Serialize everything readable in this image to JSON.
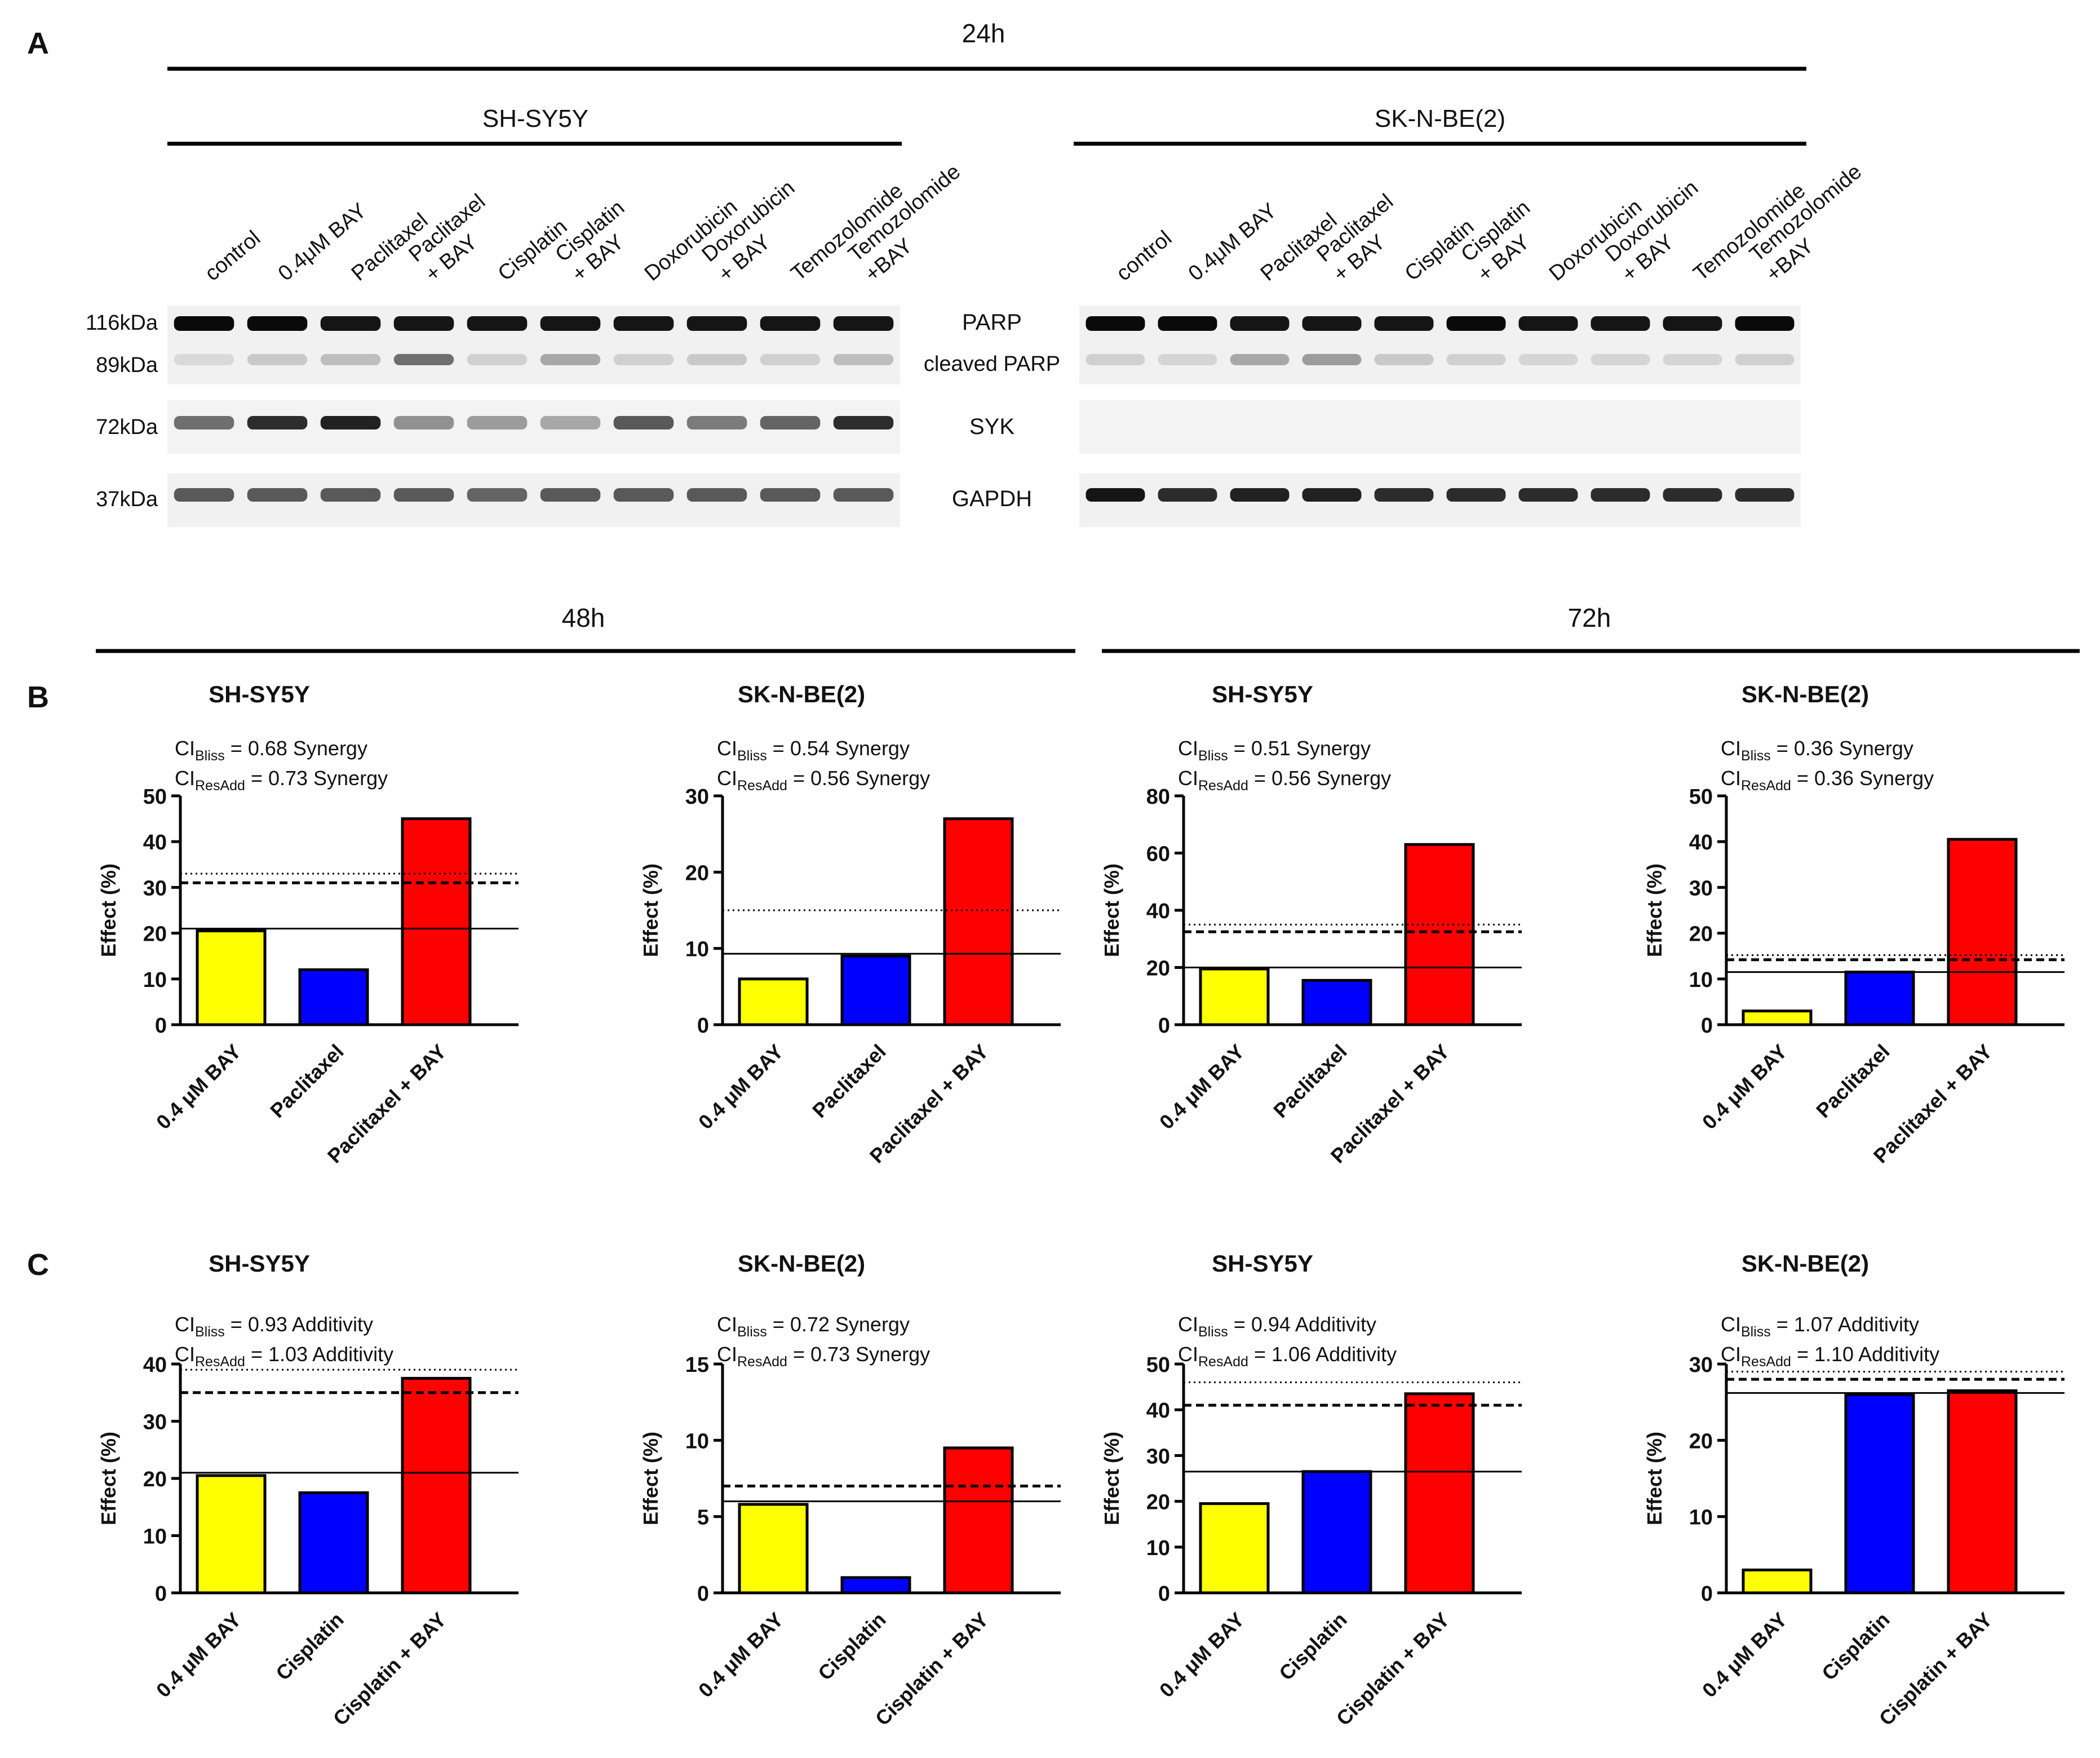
{
  "panel_labels": {
    "A": "A",
    "B": "B",
    "C": "C"
  },
  "blot": {
    "time_label": "24h",
    "mw_labels": [
      "116kDa",
      "89kDa",
      "72kDa",
      "37kDa"
    ],
    "protein_labels": [
      "PARP",
      "cleaved PARP",
      "SYK",
      "GAPDH"
    ],
    "lanes": [
      "control",
      "0.4μM BAY",
      "Paclitaxel",
      "Paclitaxel\n+ BAY",
      "Cisplatin",
      "Cisplatin\n+ BAY",
      "Doxorubicin",
      "Doxorubicin\n+ BAY",
      "Temozolomide",
      "Temozolomide\n+BAY"
    ],
    "cell_lines": [
      {
        "name": "SH-SY5Y",
        "parp": [
          1.0,
          1.0,
          0.95,
          0.95,
          0.95,
          0.95,
          0.95,
          0.95,
          0.95,
          0.95
        ],
        "cleaved": [
          0.08,
          0.15,
          0.2,
          0.55,
          0.12,
          0.3,
          0.12,
          0.15,
          0.12,
          0.2
        ],
        "syk": [
          0.55,
          0.85,
          0.9,
          0.4,
          0.35,
          0.3,
          0.65,
          0.5,
          0.6,
          0.85
        ],
        "gapdh": [
          0.65,
          0.65,
          0.65,
          0.65,
          0.6,
          0.65,
          0.65,
          0.65,
          0.65,
          0.65
        ]
      },
      {
        "name": "SK-N-BE(2)",
        "parp": [
          1.0,
          1.0,
          0.95,
          0.95,
          0.95,
          1.0,
          0.95,
          0.95,
          0.95,
          1.0
        ],
        "cleaved": [
          0.12,
          0.1,
          0.3,
          0.35,
          0.15,
          0.12,
          0.1,
          0.1,
          0.1,
          0.12
        ],
        "syk": [
          0,
          0,
          0,
          0,
          0,
          0,
          0,
          0,
          0,
          0
        ],
        "gapdh": [
          0.95,
          0.85,
          0.9,
          0.9,
          0.85,
          0.85,
          0.85,
          0.85,
          0.85,
          0.85
        ]
      }
    ]
  },
  "bar_section": {
    "time_48": "48h",
    "time_72": "72h",
    "y_axis_label": "Effect (%)"
  },
  "chart_data": [
    {
      "type": "bar",
      "panel": "B",
      "time": "48h",
      "title": "SH-SY5Y",
      "ci_lines": [
        [
          "CI",
          "Bliss",
          " = 0.68 Synergy"
        ],
        [
          "CI",
          "ResAdd",
          " = 0.73 Synergy"
        ]
      ],
      "categories": [
        "0.4 μM BAY",
        "Paclitaxel",
        "Paclitaxel + BAY"
      ],
      "values": [
        20.5,
        12,
        45
      ],
      "colors": [
        "#ffff00",
        "#0000ff",
        "#ff0000"
      ],
      "ylabel": "Effect (%)",
      "ylim": [
        0,
        50
      ],
      "yticks": [
        0,
        10,
        20,
        30,
        40,
        50
      ],
      "ref_solid": 21,
      "ref_dashed": 31,
      "ref_dotted": 33
    },
    {
      "type": "bar",
      "panel": "B",
      "time": "48h",
      "title": "SK-N-BE(2)",
      "ci_lines": [
        [
          "CI",
          "Bliss",
          " = 0.54 Synergy"
        ],
        [
          "CI",
          "ResAdd",
          " = 0.56 Synergy"
        ]
      ],
      "categories": [
        "0.4 μM BAY",
        "Paclitaxel",
        "Paclitaxel + BAY"
      ],
      "values": [
        6,
        9,
        27
      ],
      "colors": [
        "#ffff00",
        "#0000ff",
        "#ff0000"
      ],
      "ylabel": "Effect (%)",
      "ylim": [
        0,
        30
      ],
      "yticks": [
        0,
        10,
        20,
        30
      ],
      "ref_solid": 9.3,
      "ref_dashed": null,
      "ref_dotted": 15
    },
    {
      "type": "bar",
      "panel": "B",
      "time": "72h",
      "title": "SH-SY5Y",
      "ci_lines": [
        [
          "CI",
          "Bliss",
          " = 0.51 Synergy"
        ],
        [
          "CI",
          "ResAdd",
          " = 0.56 Synergy"
        ]
      ],
      "categories": [
        "0.4 μM BAY",
        "Paclitaxel",
        "Paclitaxel + BAY"
      ],
      "values": [
        19.5,
        15.5,
        63
      ],
      "colors": [
        "#ffff00",
        "#0000ff",
        "#ff0000"
      ],
      "ylabel": "Effect (%)",
      "ylim": [
        0,
        80
      ],
      "yticks": [
        0,
        20,
        40,
        60,
        80
      ],
      "ref_solid": 20,
      "ref_dashed": 32.5,
      "ref_dotted": 35
    },
    {
      "type": "bar",
      "panel": "B",
      "time": "72h",
      "title": "SK-N-BE(2)",
      "ci_lines": [
        [
          "CI",
          "Bliss",
          " = 0.36 Synergy"
        ],
        [
          "CI",
          "ResAdd",
          " = 0.36 Synergy"
        ]
      ],
      "categories": [
        "0.4 μM BAY",
        "Paclitaxel",
        "Paclitaxel + BAY"
      ],
      "values": [
        3,
        11.5,
        40.5
      ],
      "colors": [
        "#ffff00",
        "#0000ff",
        "#ff0000"
      ],
      "ylabel": "Effect (%)",
      "ylim": [
        0,
        50
      ],
      "yticks": [
        0,
        10,
        20,
        30,
        40,
        50
      ],
      "ref_solid": 11.5,
      "ref_dashed": 14.2,
      "ref_dotted": 15.2
    },
    {
      "type": "bar",
      "panel": "C",
      "time": "48h",
      "title": "SH-SY5Y",
      "ci_lines": [
        [
          "CI",
          "Bliss",
          " = 0.93 Additivity"
        ],
        [
          "CI",
          "ResAdd",
          " = 1.03 Additivity"
        ]
      ],
      "categories": [
        "0.4 μM BAY",
        "Cisplatin",
        "Cisplatin + BAY"
      ],
      "values": [
        20.5,
        17.5,
        37.5
      ],
      "colors": [
        "#ffff00",
        "#0000ff",
        "#ff0000"
      ],
      "ylabel": "Effect (%)",
      "ylim": [
        0,
        40
      ],
      "yticks": [
        0,
        10,
        20,
        30,
        40
      ],
      "ref_solid": 21,
      "ref_dashed": 35,
      "ref_dotted": 39
    },
    {
      "type": "bar",
      "panel": "C",
      "time": "48h",
      "title": "SK-N-BE(2)",
      "ci_lines": [
        [
          "CI",
          "Bliss",
          " = 0.72 Synergy"
        ],
        [
          "CI",
          "ResAdd",
          " = 0.73 Synergy"
        ]
      ],
      "categories": [
        "0.4 μM BAY",
        "Cisplatin",
        "Cisplatin + BAY"
      ],
      "values": [
        5.8,
        1,
        9.5
      ],
      "colors": [
        "#ffff00",
        "#0000ff",
        "#ff0000"
      ],
      "ylabel": "Effect (%)",
      "ylim": [
        0,
        15
      ],
      "yticks": [
        0,
        5,
        10,
        15
      ],
      "ref_solid": 6,
      "ref_dashed": 7,
      "ref_dotted": null
    },
    {
      "type": "bar",
      "panel": "C",
      "time": "72h",
      "title": "SH-SY5Y",
      "ci_lines": [
        [
          "CI",
          "Bliss",
          " = 0.94 Additivity"
        ],
        [
          "CI",
          "ResAdd",
          " = 1.06 Additivity"
        ]
      ],
      "categories": [
        "0.4 μM BAY",
        "Cisplatin",
        "Cisplatin + BAY"
      ],
      "values": [
        19.5,
        26.5,
        43.5
      ],
      "colors": [
        "#ffff00",
        "#0000ff",
        "#ff0000"
      ],
      "ylabel": "Effect (%)",
      "ylim": [
        0,
        50
      ],
      "yticks": [
        0,
        10,
        20,
        30,
        40,
        50
      ],
      "ref_solid": 26.5,
      "ref_dashed": 41,
      "ref_dotted": 46
    },
    {
      "type": "bar",
      "panel": "C",
      "time": "72h",
      "title": "SK-N-BE(2)",
      "ci_lines": [
        [
          "CI",
          "Bliss",
          " = 1.07 Additivity"
        ],
        [
          "CI",
          "ResAdd",
          " = 1.10 Additivity"
        ]
      ],
      "categories": [
        "0.4 μM BAY",
        "Cisplatin",
        "Cisplatin + BAY"
      ],
      "values": [
        3,
        26,
        26.5
      ],
      "colors": [
        "#ffff00",
        "#0000ff",
        "#ff0000"
      ],
      "ylabel": "Effect (%)",
      "ylim": [
        0,
        30
      ],
      "yticks": [
        0,
        10,
        20,
        30
      ],
      "ref_solid": 26.2,
      "ref_dashed": 28,
      "ref_dotted": 29
    }
  ]
}
